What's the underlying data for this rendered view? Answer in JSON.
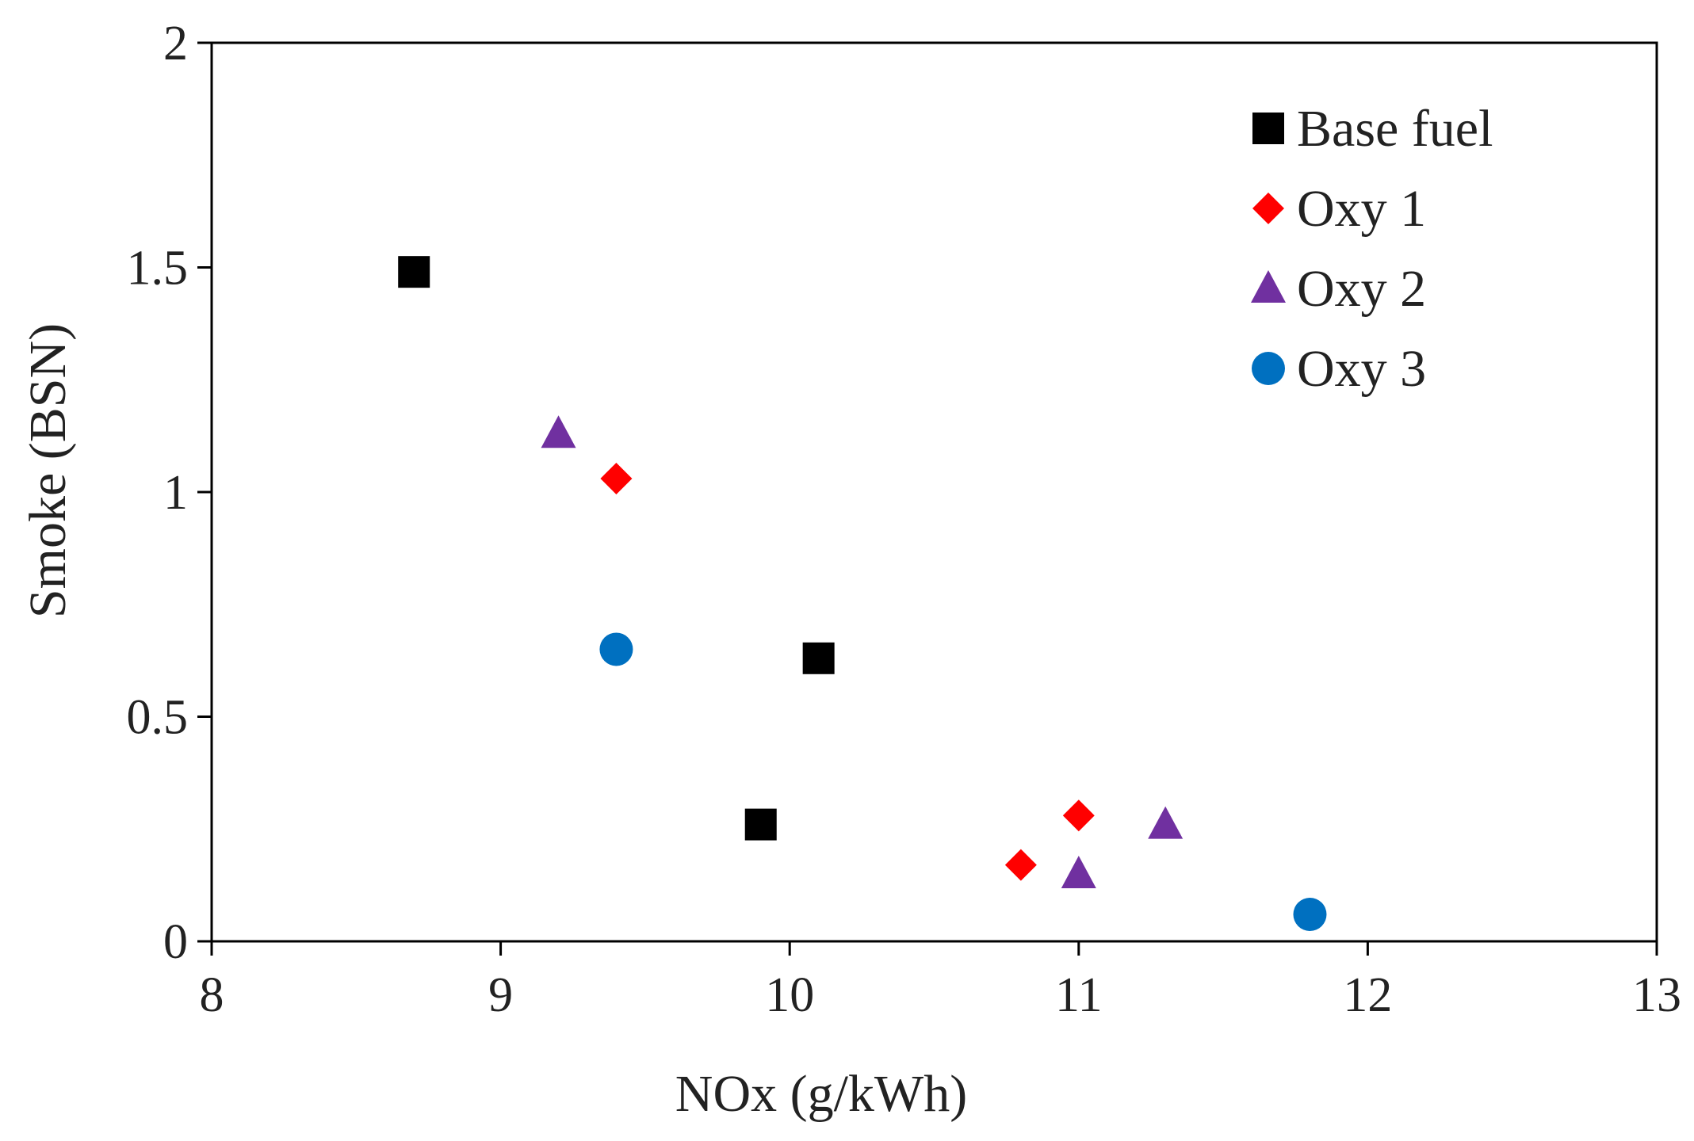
{
  "chart_data": {
    "type": "scatter",
    "title": "",
    "xlabel": "NOx (g/kWh)",
    "ylabel": "Smoke (BSN)",
    "xlim": [
      8,
      13
    ],
    "ylim": [
      0,
      2
    ],
    "x_ticks": [
      8,
      9,
      10,
      11,
      12,
      13
    ],
    "y_ticks": [
      0,
      0.5,
      1,
      1.5,
      2
    ],
    "x_tick_labels": [
      "8",
      "9",
      "10",
      "11",
      "12",
      "13"
    ],
    "y_tick_labels": [
      "0",
      "0.5",
      "1",
      "1.5",
      "2"
    ],
    "grid": false,
    "legend_position": "top-right",
    "series": [
      {
        "name": "Base fuel",
        "marker": "square",
        "color": "#000000",
        "points": [
          {
            "x": 8.7,
            "y": 1.49
          },
          {
            "x": 9.9,
            "y": 0.26
          },
          {
            "x": 10.1,
            "y": 0.63
          }
        ]
      },
      {
        "name": "Oxy 1",
        "marker": "diamond",
        "color": "#ff0000",
        "points": [
          {
            "x": 9.4,
            "y": 1.03
          },
          {
            "x": 10.8,
            "y": 0.17
          },
          {
            "x": 11.0,
            "y": 0.28
          }
        ]
      },
      {
        "name": "Oxy 2",
        "marker": "triangle",
        "color": "#7030a0",
        "points": [
          {
            "x": 9.2,
            "y": 1.13
          },
          {
            "x": 11.0,
            "y": 0.15
          },
          {
            "x": 11.3,
            "y": 0.26
          }
        ]
      },
      {
        "name": "Oxy 3",
        "marker": "circle",
        "color": "#0070c0",
        "points": [
          {
            "x": 9.4,
            "y": 0.65
          },
          {
            "x": 11.8,
            "y": 0.06
          }
        ]
      }
    ]
  }
}
